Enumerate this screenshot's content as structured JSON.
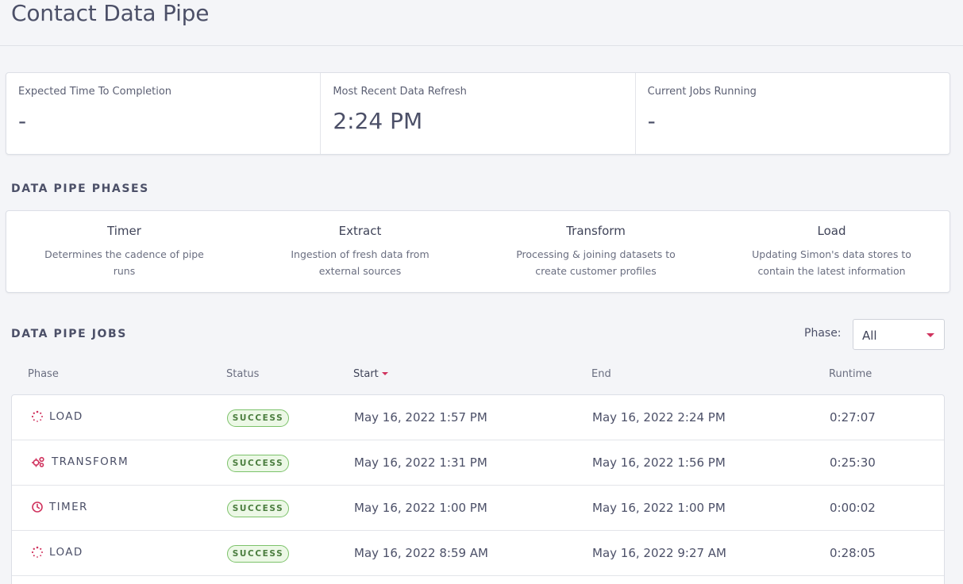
{
  "header": {
    "title": "Contact Data Pipe"
  },
  "stats": [
    {
      "label": "Expected Time To Completion",
      "value": "-"
    },
    {
      "label": "Most Recent Data Refresh",
      "value": "2:24 PM"
    },
    {
      "label": "Current Jobs Running",
      "value": "-"
    }
  ],
  "phases_section": {
    "heading": "DATA PIPE PHASES",
    "phases": [
      {
        "title": "Timer",
        "desc": "Determines the cadence of pipe runs"
      },
      {
        "title": "Extract",
        "desc": "Ingestion of fresh data from external sources"
      },
      {
        "title": "Transform",
        "desc": "Processing & joining datasets to create customer profiles"
      },
      {
        "title": "Load",
        "desc": "Updating Simon's data stores to contain the latest information"
      }
    ]
  },
  "jobs_section": {
    "heading": "DATA PIPE JOBS",
    "filter": {
      "label": "Phase:",
      "value": "All"
    },
    "columns": {
      "phase": "Phase",
      "status": "Status",
      "start": "Start",
      "end": "End",
      "runtime": "Runtime"
    },
    "rows": [
      {
        "phase": "LOAD",
        "icon": "load-spinner-icon",
        "status": "SUCCESS",
        "start": "May 16, 2022 1:57 PM",
        "end": "May 16, 2022 2:24 PM",
        "runtime": "0:27:07"
      },
      {
        "phase": "TRANSFORM",
        "icon": "gears-icon",
        "status": "SUCCESS",
        "start": "May 16, 2022 1:31 PM",
        "end": "May 16, 2022 1:56 PM",
        "runtime": "0:25:30"
      },
      {
        "phase": "TIMER",
        "icon": "clock-icon",
        "status": "SUCCESS",
        "start": "May 16, 2022 1:00 PM",
        "end": "May 16, 2022 1:00 PM",
        "runtime": "0:00:02"
      },
      {
        "phase": "LOAD",
        "icon": "load-spinner-icon",
        "status": "SUCCESS",
        "start": "May 16, 2022 8:59 AM",
        "end": "May 16, 2022 9:27 AM",
        "runtime": "0:28:05"
      }
    ]
  },
  "colors": {
    "accent": "#d0335e",
    "success_border": "#7cc26a",
    "success_bg": "#ecf8e6"
  }
}
